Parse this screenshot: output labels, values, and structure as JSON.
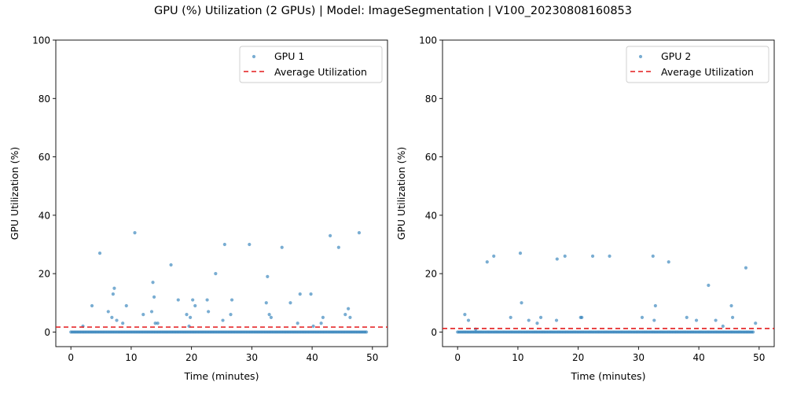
{
  "figure": {
    "title": "GPU (%) Utilization (2 GPUs) | Model: ImageSegmentation | V100_20230808160853"
  },
  "chart_data": [
    {
      "type": "scatter",
      "xlabel": "Time (minutes)",
      "ylabel": "GPU Utilization (%)",
      "xlim": [
        -2.5,
        52.5
      ],
      "ylim": [
        -5,
        100
      ],
      "xticks": [
        0,
        10,
        20,
        30,
        40,
        50
      ],
      "yticks": [
        0,
        20,
        40,
        60,
        80,
        100
      ],
      "legend_position": "top-right",
      "series": [
        {
          "name": "GPU 1",
          "color": "#1f77b4",
          "baseline": {
            "value": 0,
            "x_start": 0,
            "x_end": 49,
            "step": 0.25
          },
          "points": [
            [
              2,
              2
            ],
            [
              3.5,
              9
            ],
            [
              4.8,
              27
            ],
            [
              6.2,
              7
            ],
            [
              6.8,
              5
            ],
            [
              7.0,
              13
            ],
            [
              7.2,
              15
            ],
            [
              7.6,
              4
            ],
            [
              8.6,
              3
            ],
            [
              9.2,
              9
            ],
            [
              10.6,
              34
            ],
            [
              12.0,
              6
            ],
            [
              13.4,
              7
            ],
            [
              13.6,
              17
            ],
            [
              13.8,
              12
            ],
            [
              14.0,
              3
            ],
            [
              14.4,
              3
            ],
            [
              16.6,
              23
            ],
            [
              17.8,
              11
            ],
            [
              19.2,
              6
            ],
            [
              19.6,
              2
            ],
            [
              19.8,
              5
            ],
            [
              20.2,
              11
            ],
            [
              20.6,
              9
            ],
            [
              22.6,
              11
            ],
            [
              22.8,
              7
            ],
            [
              24.0,
              20
            ],
            [
              25.2,
              4
            ],
            [
              25.5,
              30
            ],
            [
              26.5,
              6
            ],
            [
              26.7,
              11
            ],
            [
              29.6,
              30
            ],
            [
              32.4,
              10
            ],
            [
              32.6,
              19
            ],
            [
              32.9,
              6
            ],
            [
              33.2,
              5
            ],
            [
              35.0,
              29
            ],
            [
              36.4,
              10
            ],
            [
              37.6,
              3
            ],
            [
              38.0,
              13
            ],
            [
              39.8,
              13
            ],
            [
              40.2,
              2
            ],
            [
              41.5,
              3
            ],
            [
              41.8,
              5
            ],
            [
              43.0,
              33
            ],
            [
              44.4,
              29
            ],
            [
              45.5,
              6
            ],
            [
              46.0,
              8
            ],
            [
              46.3,
              5
            ],
            [
              47.8,
              34
            ]
          ],
          "average": 1.7
        },
        {
          "name": "GPU 2",
          "color": "#1f77b4",
          "baseline": {
            "value": 0,
            "x_start": 0,
            "x_end": 49,
            "step": 0.25
          },
          "points": [
            [
              1.2,
              6
            ],
            [
              1.8,
              4
            ],
            [
              3.0,
              1
            ],
            [
              4.9,
              24
            ],
            [
              6.0,
              26
            ],
            [
              8.8,
              5
            ],
            [
              10.4,
              27
            ],
            [
              10.6,
              10
            ],
            [
              11.8,
              4
            ],
            [
              13.2,
              3
            ],
            [
              13.8,
              5
            ],
            [
              16.4,
              4
            ],
            [
              16.5,
              25
            ],
            [
              17.8,
              26
            ],
            [
              20.4,
              5
            ],
            [
              20.6,
              5
            ],
            [
              22.4,
              26
            ],
            [
              25.2,
              26
            ],
            [
              30.6,
              5
            ],
            [
              32.4,
              26
            ],
            [
              32.6,
              4
            ],
            [
              32.8,
              9
            ],
            [
              35.0,
              24
            ],
            [
              38.0,
              5
            ],
            [
              39.6,
              4
            ],
            [
              41.6,
              16
            ],
            [
              42.8,
              4
            ],
            [
              44.0,
              2
            ],
            [
              45.4,
              9
            ],
            [
              45.6,
              5
            ],
            [
              47.8,
              22
            ],
            [
              49.4,
              3
            ]
          ],
          "average": 1.2
        }
      ],
      "avg_line": {
        "label": "Average Utilization",
        "color": "#e41a1c",
        "dash": "6,4"
      }
    }
  ],
  "legend": {
    "gpu1_label": "GPU 1",
    "gpu2_label": "GPU 2",
    "avg_label": "Average Utilization"
  }
}
